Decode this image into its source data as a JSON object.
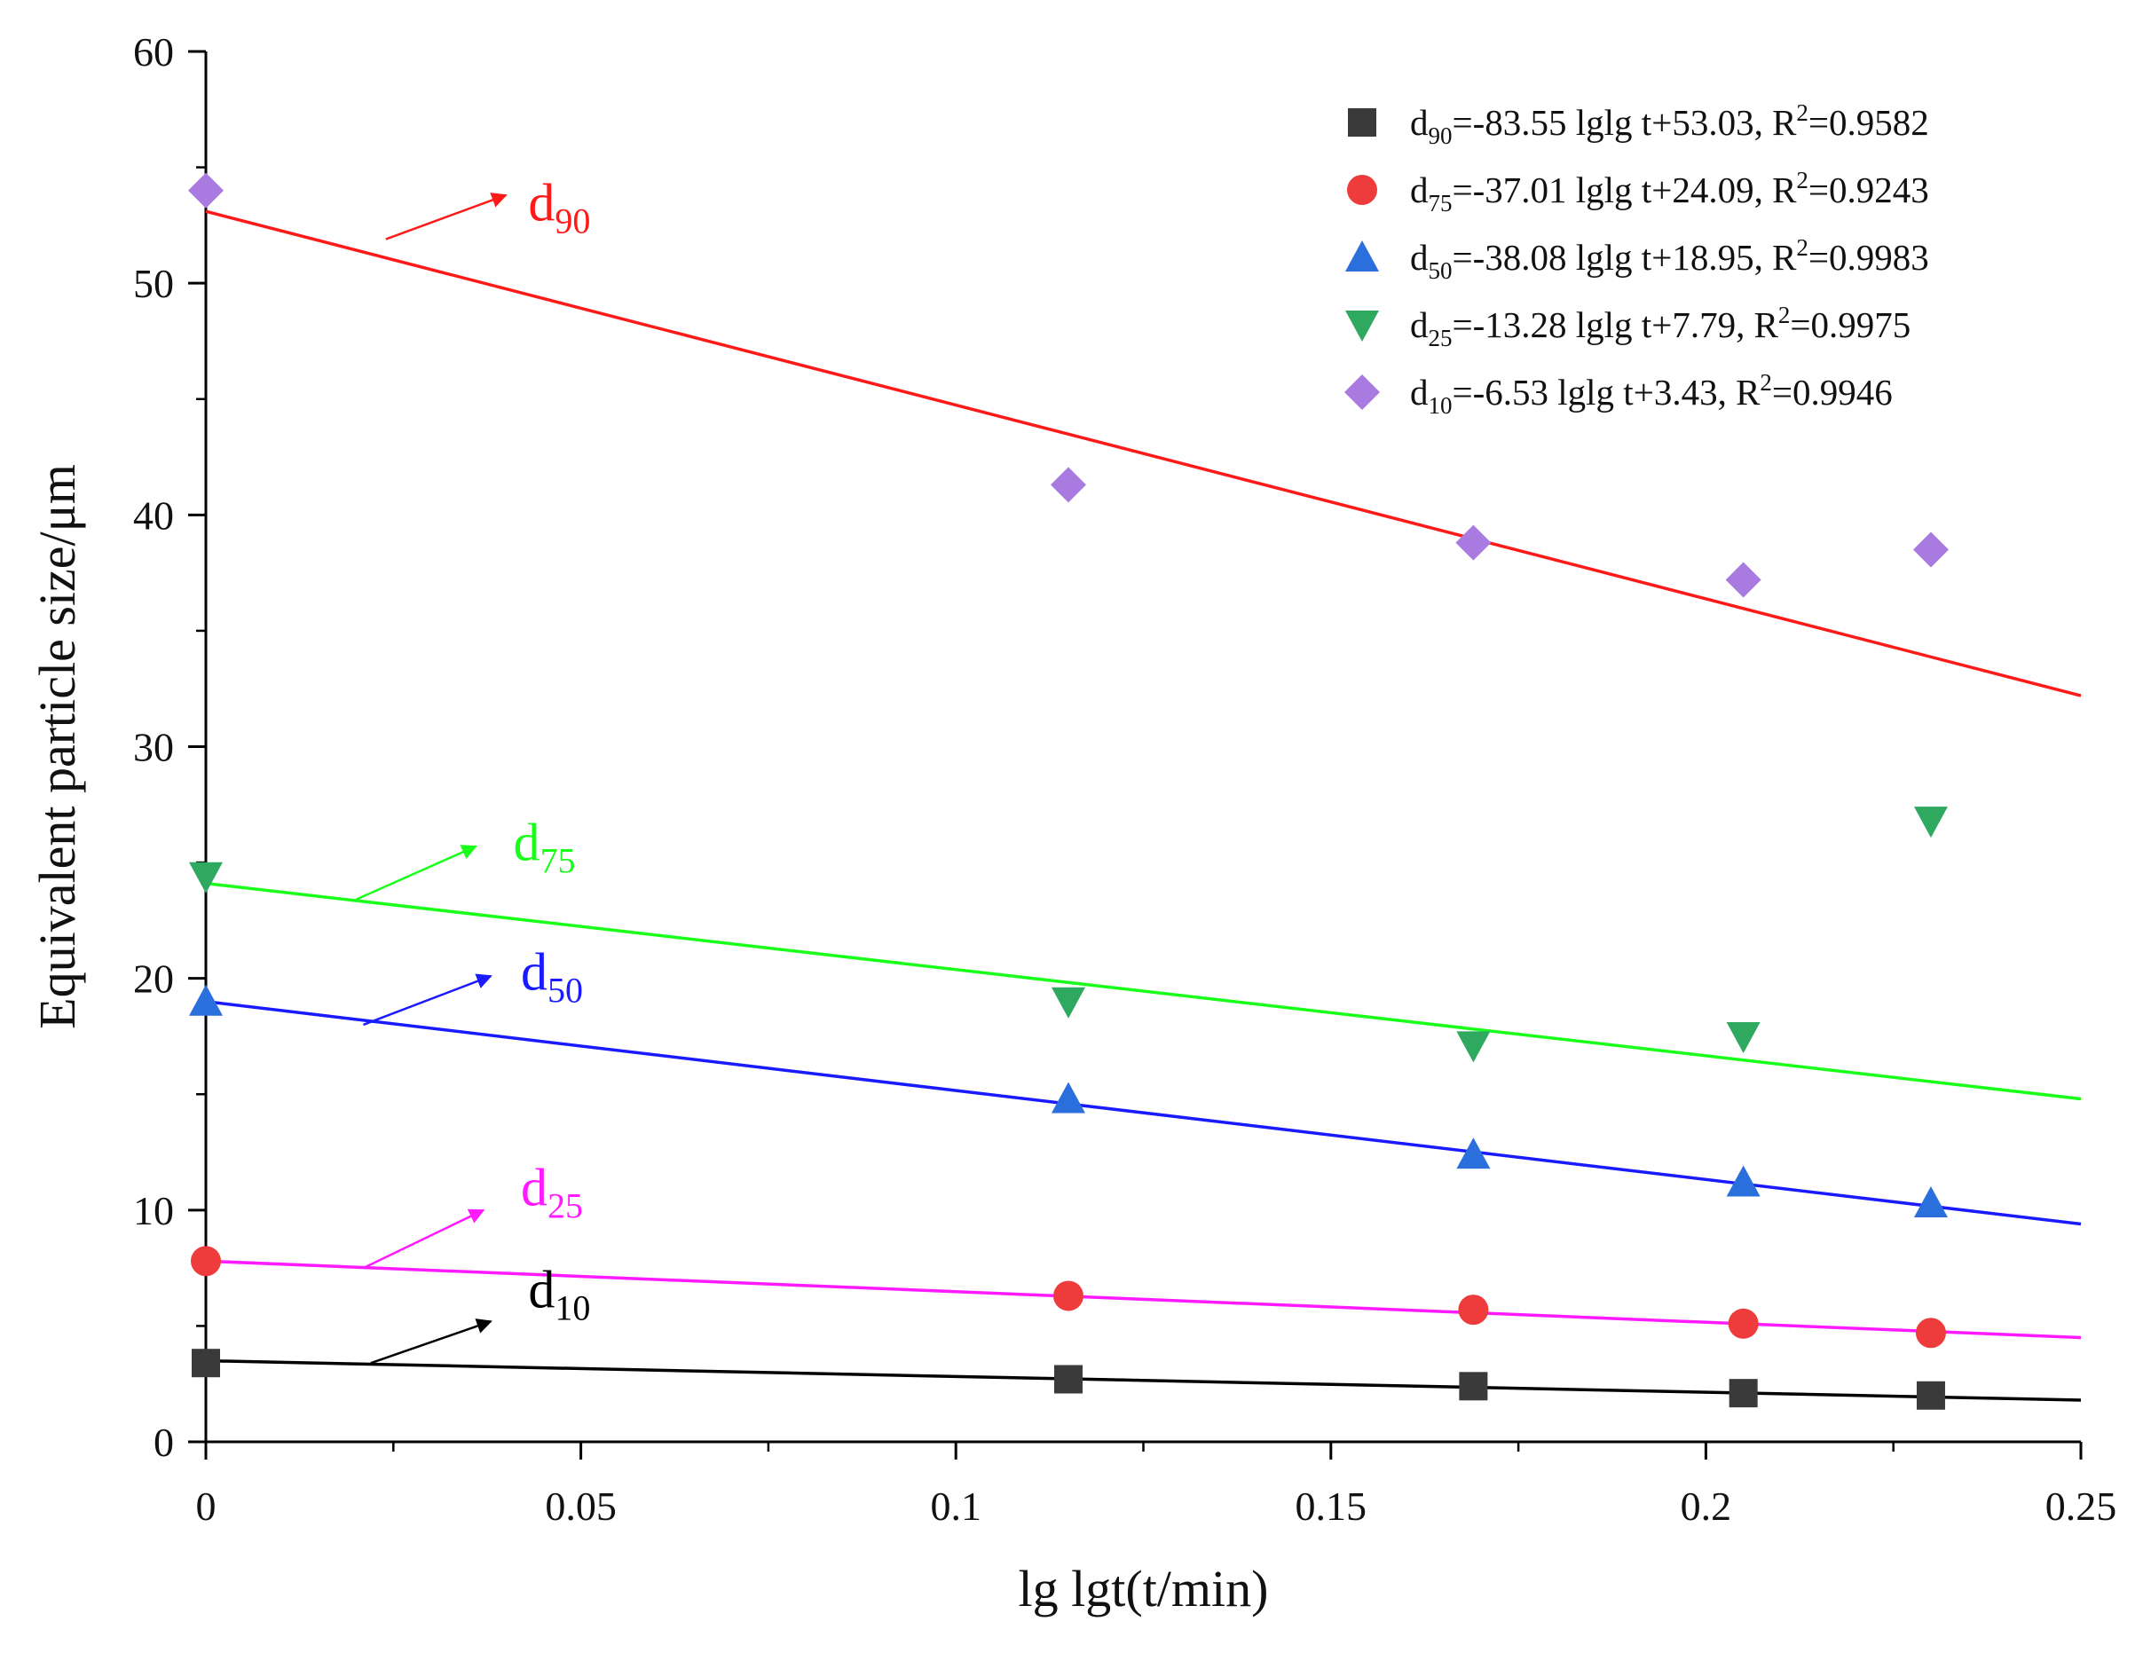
{
  "chart_data": {
    "type": "scatter",
    "xlabel": "lg lgt(t/min)",
    "ylabel": "Equivalent particle size/μm",
    "xlim": [
      0,
      0.25
    ],
    "ylim": [
      0,
      60
    ],
    "xticks": [
      0,
      0.05,
      0.1,
      0.15,
      0.2,
      0.25
    ],
    "xtick_labels": [
      "0",
      "0.05",
      "0.1",
      "0.15",
      "0.2",
      "0.25"
    ],
    "yticks": [
      0,
      10,
      20,
      30,
      40,
      50,
      60
    ],
    "ytick_labels": [
      "0",
      "10",
      "20",
      "30",
      "40",
      "50",
      "60"
    ],
    "x": [
      0,
      0.115,
      0.169,
      0.205,
      0.23
    ],
    "series": [
      {
        "name": "d90",
        "sub": "90",
        "marker": "square",
        "color": "#3a3a3a",
        "values": [
          3.4,
          2.7,
          2.4,
          2.1,
          2.0
        ],
        "legend": {
          "pre": "d",
          "sub": "90",
          "mid": "=-83.55 lglg t+53.03, R",
          "sup": "2",
          "post": "=0.9582"
        }
      },
      {
        "name": "d75",
        "sub": "75",
        "marker": "circle",
        "color": "#ee3b3b",
        "values": [
          7.8,
          6.3,
          5.7,
          5.1,
          4.7
        ],
        "legend": {
          "pre": "d",
          "sub": "75",
          "mid": "=-37.01 lglg t+24.09, R",
          "sup": "2",
          "post": "=0.9243"
        }
      },
      {
        "name": "d50",
        "sub": "50",
        "marker": "triangle-up",
        "color": "#2a6fdb",
        "values": [
          19.0,
          14.8,
          12.4,
          11.2,
          10.3
        ],
        "legend": {
          "pre": "d",
          "sub": "50",
          "mid": "=-38.08 lglg t+18.95, R",
          "sup": "2",
          "post": "=0.9983"
        }
      },
      {
        "name": "d25",
        "sub": "25",
        "marker": "triangle-down",
        "color": "#2fa860",
        "values": [
          24.4,
          19.0,
          17.1,
          17.5,
          26.8
        ],
        "legend": {
          "pre": "d",
          "sub": "25",
          "mid": "=-13.28 lglg t+7.79, R",
          "sup": "2",
          "post": "=0.9975"
        }
      },
      {
        "name": "d10",
        "sub": "10",
        "marker": "diamond",
        "color": "#a97be0",
        "values": [
          54.0,
          41.3,
          38.8,
          37.2,
          38.5
        ],
        "legend": {
          "pre": "d",
          "sub": "10",
          "mid": "=-6.53 lglg t+3.43, R",
          "sup": "2",
          "post": "=0.9946"
        }
      }
    ],
    "fit_lines": [
      {
        "name": "d90-fit",
        "color": "#ff1a1a",
        "x0": 0,
        "y0": 53.1,
        "x1": 0.25,
        "y1": 32.2
      },
      {
        "name": "d75-fit",
        "color": "#1aff1a",
        "x0": 0,
        "y0": 24.1,
        "x1": 0.25,
        "y1": 14.8
      },
      {
        "name": "d50-fit",
        "color": "#1a1aff",
        "x0": 0,
        "y0": 19.0,
        "x1": 0.25,
        "y1": 9.4
      },
      {
        "name": "d25-fit",
        "color": "#ff1aff",
        "x0": 0,
        "y0": 7.8,
        "x1": 0.25,
        "y1": 4.5
      },
      {
        "name": "d10-fit",
        "color": "#000000",
        "x0": 0,
        "y0": 3.5,
        "x1": 0.25,
        "y1": 1.8
      }
    ],
    "annotations": [
      {
        "name": "d90",
        "text": "d",
        "sub": "90",
        "color": "#ff1a1a",
        "text_x": 0.043,
        "text_y": 52.7,
        "arrow_from": [
          0.024,
          51.9
        ],
        "arrow_to": [
          0.04,
          53.8
        ]
      },
      {
        "name": "d75",
        "text": "d",
        "sub": "75",
        "color": "#1aff1a",
        "text_x": 0.041,
        "text_y": 25.1,
        "arrow_from": [
          0.02,
          23.4
        ],
        "arrow_to": [
          0.036,
          25.7
        ]
      },
      {
        "name": "d50",
        "text": "d",
        "sub": "50",
        "color": "#1a1aff",
        "text_x": 0.042,
        "text_y": 19.5,
        "arrow_from": [
          0.021,
          18.0
        ],
        "arrow_to": [
          0.038,
          20.1
        ]
      },
      {
        "name": "d25",
        "text": "d",
        "sub": "25",
        "color": "#ff1aff",
        "text_x": 0.042,
        "text_y": 10.2,
        "arrow_from": [
          0.021,
          7.5
        ],
        "arrow_to": [
          0.037,
          10.0
        ]
      },
      {
        "name": "d10",
        "text": "d",
        "sub": "10",
        "color": "#000000",
        "text_x": 0.043,
        "text_y": 5.8,
        "arrow_from": [
          0.022,
          3.4
        ],
        "arrow_to": [
          0.038,
          5.2
        ]
      }
    ],
    "legend_position": "top-right",
    "grid": false
  }
}
